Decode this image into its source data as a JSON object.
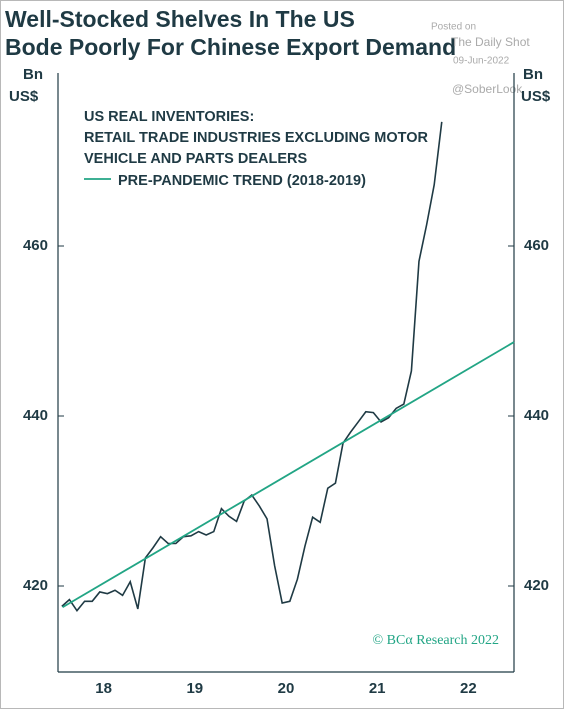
{
  "chart_data": {
    "type": "line",
    "title": [
      "Well-Stocked Shelves In The US",
      "Bode Poorly For Chinese Export Demand"
    ],
    "y_unit": [
      "Bn",
      "US$"
    ],
    "legend_title": "US REAL INVENTORIES:",
    "series": [
      {
        "name": "RETAIL TRADE INDUSTRIES EXCLUDING MOTOR VEHICLE AND PARTS DEALERS",
        "color": "#1f3a44",
        "x": [
          2018.042,
          2018.125,
          2018.208,
          2018.292,
          2018.375,
          2018.458,
          2018.542,
          2018.625,
          2018.708,
          2018.792,
          2018.875,
          2018.958,
          2019.042,
          2019.125,
          2019.208,
          2019.292,
          2019.375,
          2019.458,
          2019.542,
          2019.625,
          2019.708,
          2019.792,
          2019.875,
          2019.958,
          2020.042,
          2020.125,
          2020.208,
          2020.292,
          2020.375,
          2020.458,
          2020.542,
          2020.625,
          2020.708,
          2020.792,
          2020.875,
          2020.958,
          2021.042,
          2021.125,
          2021.208,
          2021.292,
          2021.375,
          2021.458,
          2021.542,
          2021.625,
          2021.708,
          2021.792,
          2021.875,
          2021.958,
          2022.042,
          2022.125,
          2022.208
        ],
        "values": [
          417.6,
          418.4,
          417.1,
          418.2,
          418.2,
          419.3,
          419.1,
          419.5,
          418.9,
          420.5,
          417.3,
          423.3,
          424.5,
          425.8,
          425.0,
          425.0,
          425.8,
          425.9,
          426.4,
          426.0,
          426.4,
          429.1,
          428.2,
          427.6,
          430.0,
          430.7,
          429.4,
          427.9,
          422.4,
          418.0,
          418.2,
          420.8,
          424.7,
          428.1,
          427.5,
          431.5,
          432.1,
          436.8,
          438.1,
          439.3,
          440.5,
          440.4,
          439.3,
          439.8,
          440.9,
          441.4,
          445.3,
          458.2,
          462.5,
          467.2,
          474.6
        ]
      },
      {
        "name": "PRE-PANDEMIC TREND (2018-2019)",
        "color": "#22a585",
        "x": [
          2018.05,
          2023.0
        ],
        "values": [
          417.5,
          448.7
        ]
      }
    ],
    "xlim": [
      2018,
      2023
    ],
    "xticks": [
      {
        "value": 2018.5,
        "label": "18"
      },
      {
        "value": 2019.5,
        "label": "19"
      },
      {
        "value": 2020.5,
        "label": "20"
      },
      {
        "value": 2021.5,
        "label": "21"
      },
      {
        "value": 2022.5,
        "label": "22"
      }
    ],
    "ylim": [
      410,
      480
    ],
    "yticks": [
      420,
      440,
      460
    ],
    "credit": "© BCα Research 2022",
    "watermark": [
      "Posted on",
      "The Daily Shot",
      "09-Jun-2022",
      "@SoberLook"
    ]
  }
}
